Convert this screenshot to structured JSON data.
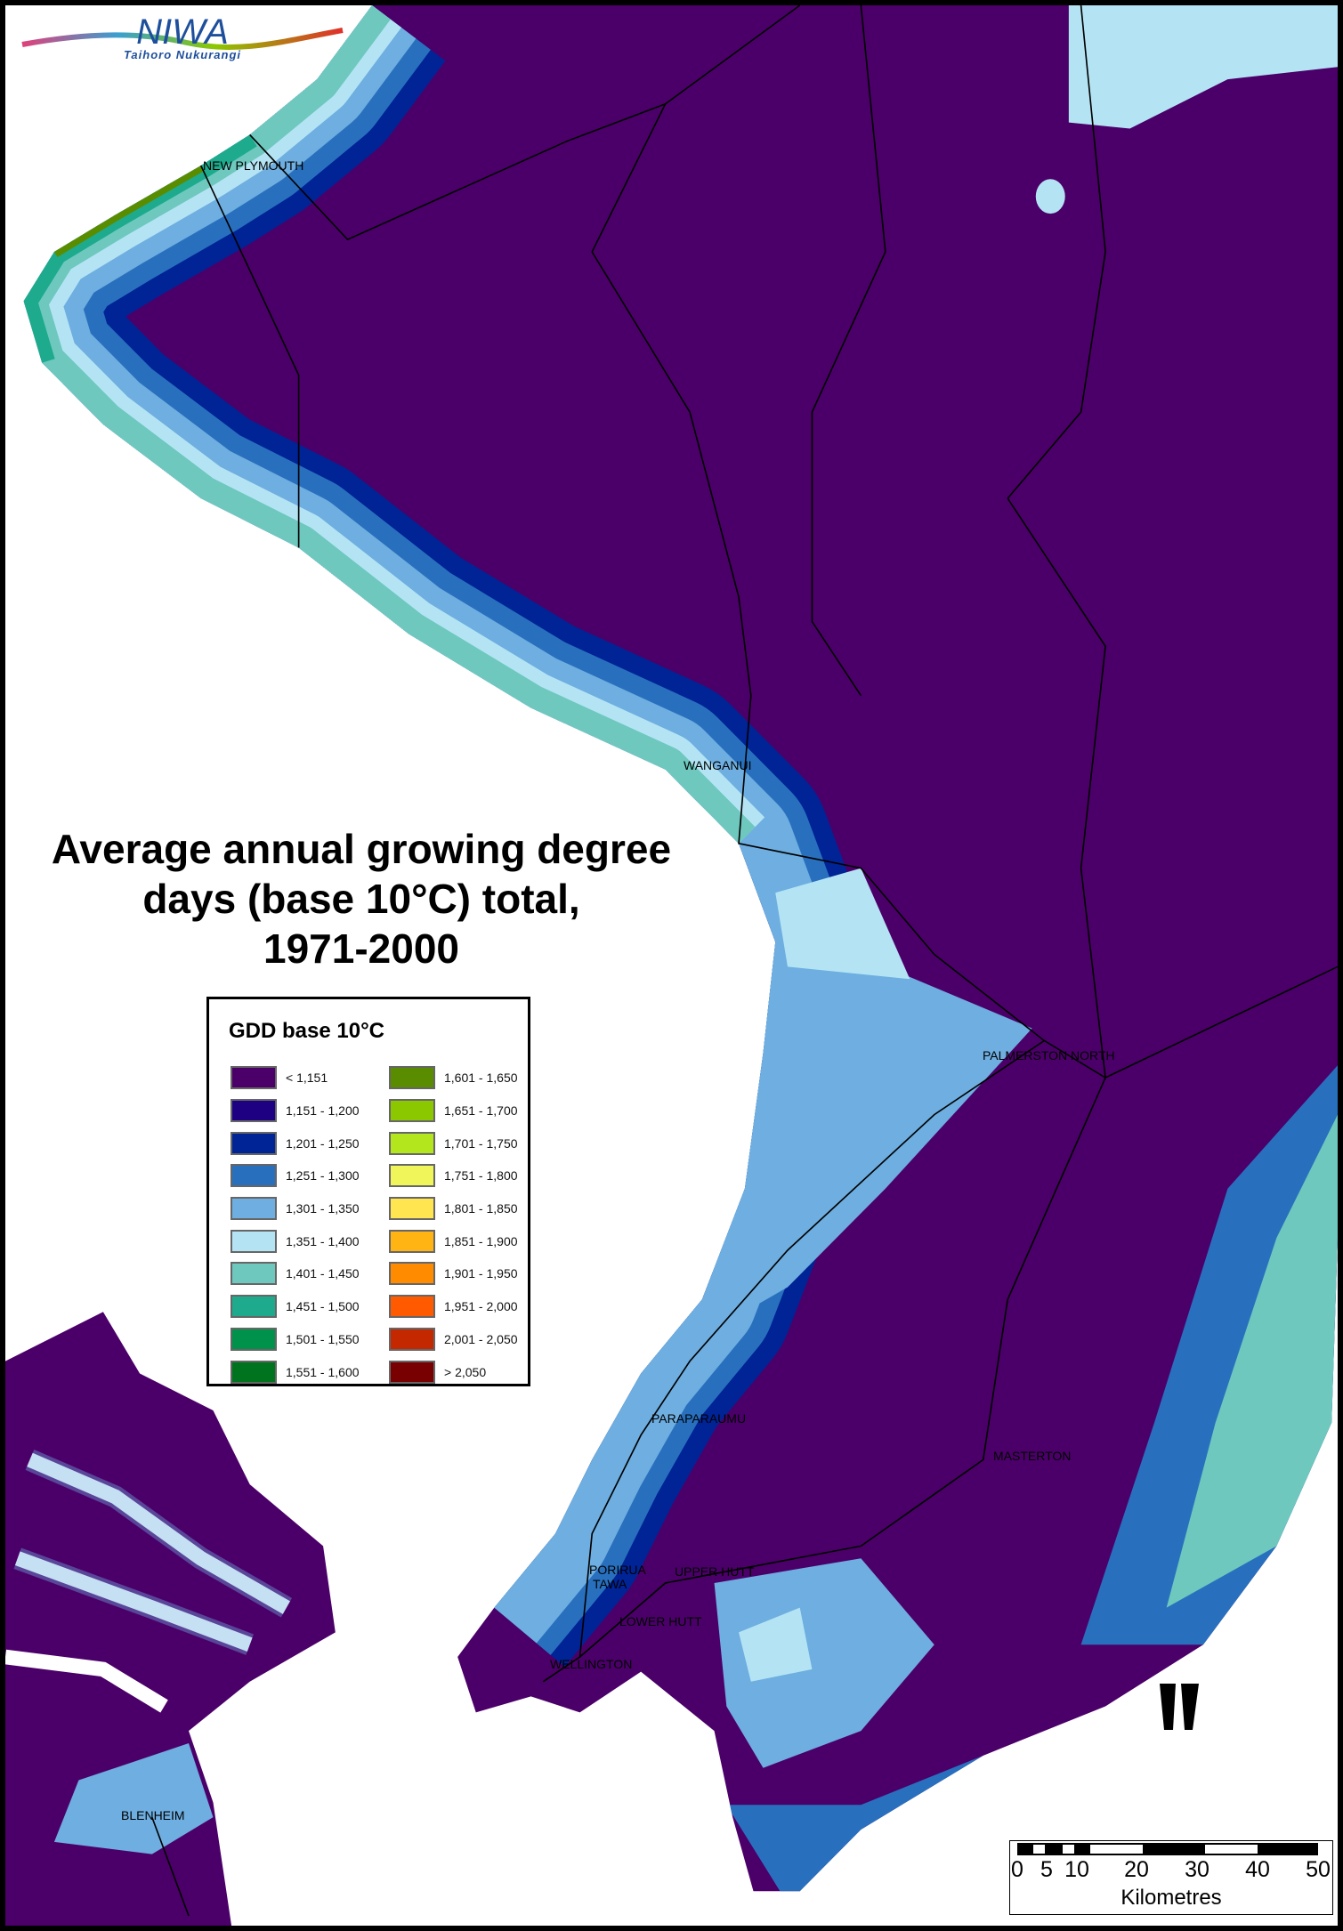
{
  "logo": {
    "name": "NIWA",
    "tagline": "Taihoro Nukurangi"
  },
  "title": [
    "Average annual growing degree",
    "days (base 10°C) total,",
    "1971-2000"
  ],
  "legend": {
    "title": "GDD base 10°C",
    "items": [
      {
        "label": "< 1,151",
        "color": "#4b0069"
      },
      {
        "label": "1,151 - 1,200",
        "color": "#1e0082"
      },
      {
        "label": "1,201 - 1,250",
        "color": "#002396"
      },
      {
        "label": "1,251 - 1,300",
        "color": "#2870be"
      },
      {
        "label": "1,301 - 1,350",
        "color": "#6eaee0"
      },
      {
        "label": "1,351 - 1,400",
        "color": "#b4e4f4"
      },
      {
        "label": "1,401 - 1,450",
        "color": "#6ec8be"
      },
      {
        "label": "1,451 - 1,500",
        "color": "#1eaa8c"
      },
      {
        "label": "1,501 - 1,550",
        "color": "#00914b"
      },
      {
        "label": "1,551 - 1,600",
        "color": "#00731e"
      },
      {
        "label": "1,601 - 1,650",
        "color": "#5a8c00"
      },
      {
        "label": "1,651 - 1,700",
        "color": "#8cc800"
      },
      {
        "label": "1,701 - 1,750",
        "color": "#b4e61e"
      },
      {
        "label": "1,751 - 1,800",
        "color": "#f0f65a"
      },
      {
        "label": "1,801 - 1,850",
        "color": "#ffe650"
      },
      {
        "label": "1,851 - 1,900",
        "color": "#ffb414"
      },
      {
        "label": "1,901 - 1,950",
        "color": "#ff8c00"
      },
      {
        "label": "1,951 - 2,000",
        "color": "#ff5a00"
      },
      {
        "label": "2,001 - 2,050",
        "color": "#c32800"
      },
      {
        "label": "> 2,050",
        "color": "#780000"
      }
    ]
  },
  "towns": {
    "new_plymouth": "NEW PLYMOUTH",
    "wanganui": "WANGANUI",
    "palmerston_north": "PALMERSTON NORTH",
    "paraparaumu": "PARAPARAUMU",
    "masterton": "MASTERTON",
    "porirua": "PORIRUA",
    "tawa": "TAWA",
    "upper_hutt": "UPPER HUTT",
    "lower_hutt": "LOWER HUTT",
    "wellington": "WELLINGTON",
    "blenheim": "BLENHEIM"
  },
  "scale": {
    "ticks": [
      "0",
      "5",
      "10",
      "20",
      "30",
      "40",
      "50"
    ],
    "unit": "Kilometres"
  }
}
